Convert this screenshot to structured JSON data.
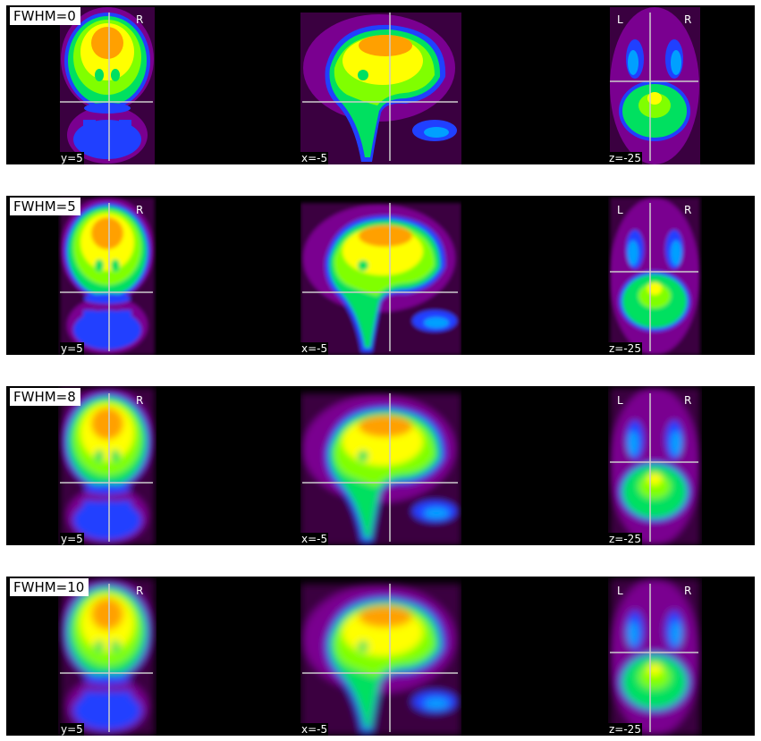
{
  "panels": [
    {
      "title": "FWHM=0",
      "fwhm": 0,
      "views": {
        "coronal": {
          "coord": "y=5",
          "orientation_right": "R"
        },
        "sagittal": {
          "coord": "x=-5"
        },
        "axial": {
          "coord": "z=-25",
          "orientation_left": "L",
          "orientation_right": "R"
        }
      }
    },
    {
      "title": "FWHM=5",
      "fwhm": 5,
      "views": {
        "coronal": {
          "coord": "y=5",
          "orientation_right": "R"
        },
        "sagittal": {
          "coord": "x=-5"
        },
        "axial": {
          "coord": "z=-25",
          "orientation_left": "L",
          "orientation_right": "R"
        }
      }
    },
    {
      "title": "FWHM=8",
      "fwhm": 8,
      "views": {
        "coronal": {
          "coord": "y=5",
          "orientation_right": "R"
        },
        "sagittal": {
          "coord": "x=-5"
        },
        "axial": {
          "coord": "z=-25",
          "orientation_left": "L",
          "orientation_right": "R"
        }
      }
    },
    {
      "title": "FWHM=10",
      "fwhm": 10,
      "views": {
        "coronal": {
          "coord": "y=5",
          "orientation_right": "R"
        },
        "sagittal": {
          "coord": "x=-5"
        },
        "axial": {
          "coord": "z=-25",
          "orientation_left": "L",
          "orientation_right": "R"
        }
      }
    }
  ],
  "colors": {
    "background": "#000000",
    "crosshair": "#cccccc",
    "colormap": [
      "#000000",
      "#3a0040",
      "#7a0090",
      "#a010c0",
      "#2040ff",
      "#00a0ff",
      "#00e060",
      "#80ff00",
      "#ffff00",
      "#ffa000",
      "#ff3000"
    ]
  }
}
